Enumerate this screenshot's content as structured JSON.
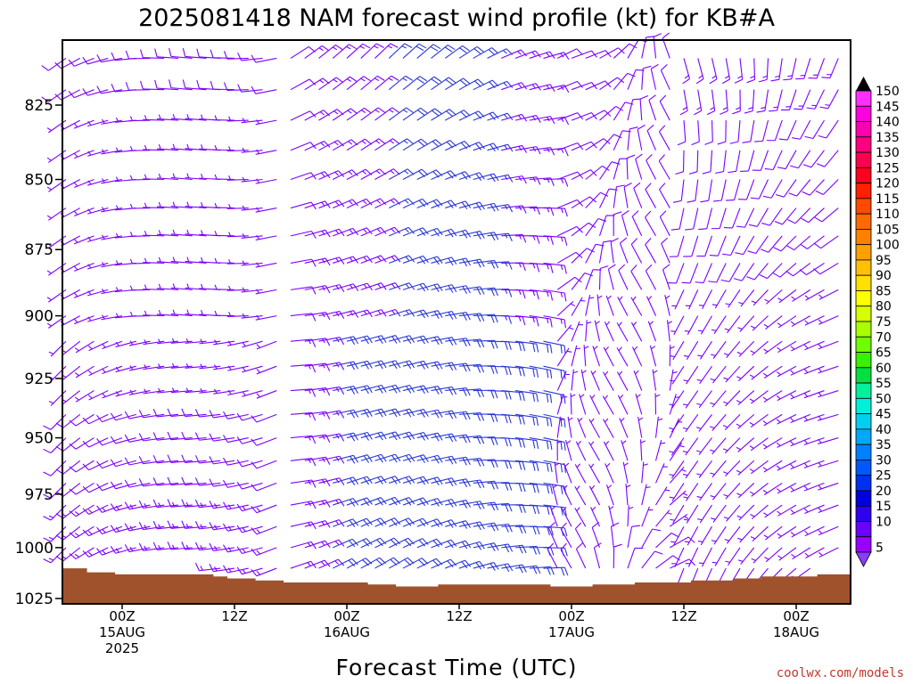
{
  "title": "2025081418 NAM forecast wind profile (kt) for KB#A",
  "x_axis_title": "Forecast Time (UTC)",
  "credit": "coolwx.com/models",
  "colors": {
    "barb": "#7a00ff",
    "barb_strong": "#2a36d8",
    "ground": "#a0522d"
  },
  "chart_data": {
    "type": "wind-barb time-height profile",
    "title": "2025081418 NAM forecast wind profile (kt) for KB#A",
    "xlabel": "Forecast Time (UTC)",
    "ylabel": "",
    "y_scale": "pressure (hPa), increasing downward",
    "ylim": [
      1028,
      806
    ],
    "y_ticks": [
      "825",
      "850",
      "875",
      "900",
      "925",
      "950",
      "975",
      "1000",
      "1025"
    ],
    "x_ticks": [
      {
        "hour": 6,
        "line1": "00Z",
        "line2": "15AUG",
        "line3": "2025"
      },
      {
        "hour": 18,
        "line1": "12Z",
        "line2": "",
        "line3": ""
      },
      {
        "hour": 30,
        "line1": "00Z",
        "line2": "16AUG",
        "line3": ""
      },
      {
        "hour": 42,
        "line1": "12Z",
        "line2": "",
        "line3": ""
      },
      {
        "hour": 54,
        "line1": "00Z",
        "line2": "17AUG",
        "line3": ""
      },
      {
        "hour": 66,
        "line1": "12Z",
        "line2": "",
        "line3": ""
      },
      {
        "hour": 78,
        "line1": "00Z",
        "line2": "18AUG",
        "line3": ""
      }
    ],
    "xlim": [
      0,
      84
    ],
    "x_units": "forecast hour from 2025081418",
    "time_step_hours": 1.5,
    "pressure_levels": [
      810,
      820,
      830,
      840,
      850,
      860,
      870,
      880,
      890,
      900,
      910,
      920,
      930,
      940,
      950,
      960,
      970,
      980,
      990,
      1000,
      1010,
      1020
    ],
    "surface_pressure": [
      1010,
      1010,
      1012,
      1012,
      1013,
      1013,
      1013,
      1013,
      1013,
      1013,
      1013,
      1014,
      1015,
      1015,
      1016,
      1016,
      1017,
      1017,
      1017,
      1017,
      1017,
      1017,
      1018,
      1018,
      1019,
      1019,
      1019,
      1018,
      1018,
      1018,
      1018,
      1018,
      1018,
      1018,
      1018,
      1019,
      1019,
      1019,
      1018,
      1018,
      1018,
      1017,
      1017,
      1017,
      1017,
      1016,
      1016,
      1016,
      1015,
      1015,
      1014,
      1014,
      1014,
      1014,
      1013,
      1013,
      1013,
      1013
    ],
    "colorbar": {
      "labels": [
        "150",
        "145",
        "140",
        "135",
        "130",
        "125",
        "120",
        "115",
        "110",
        "105",
        "100",
        "95",
        "90",
        "85",
        "80",
        "75",
        "70",
        "65",
        "60",
        "55",
        "50",
        "45",
        "40",
        "35",
        "30",
        "25",
        "20",
        "15",
        "10",
        "5"
      ],
      "colors": [
        "#ff30ff",
        "#ff00e0",
        "#ff00b0",
        "#ff0080",
        "#ff0050",
        "#ff0020",
        "#ff2000",
        "#ff4a00",
        "#ff6a00",
        "#ff8000",
        "#ffa000",
        "#ffc000",
        "#ffe000",
        "#ffff00",
        "#d8ff00",
        "#a8ff00",
        "#70ff00",
        "#38f000",
        "#00e040",
        "#00f0a0",
        "#00f0d8",
        "#00d0f0",
        "#00a8ff",
        "#0080ff",
        "#0058ff",
        "#0030f0",
        "#0000e0",
        "#3000f0",
        "#6a00ff",
        "#9a00ff"
      ]
    }
  }
}
